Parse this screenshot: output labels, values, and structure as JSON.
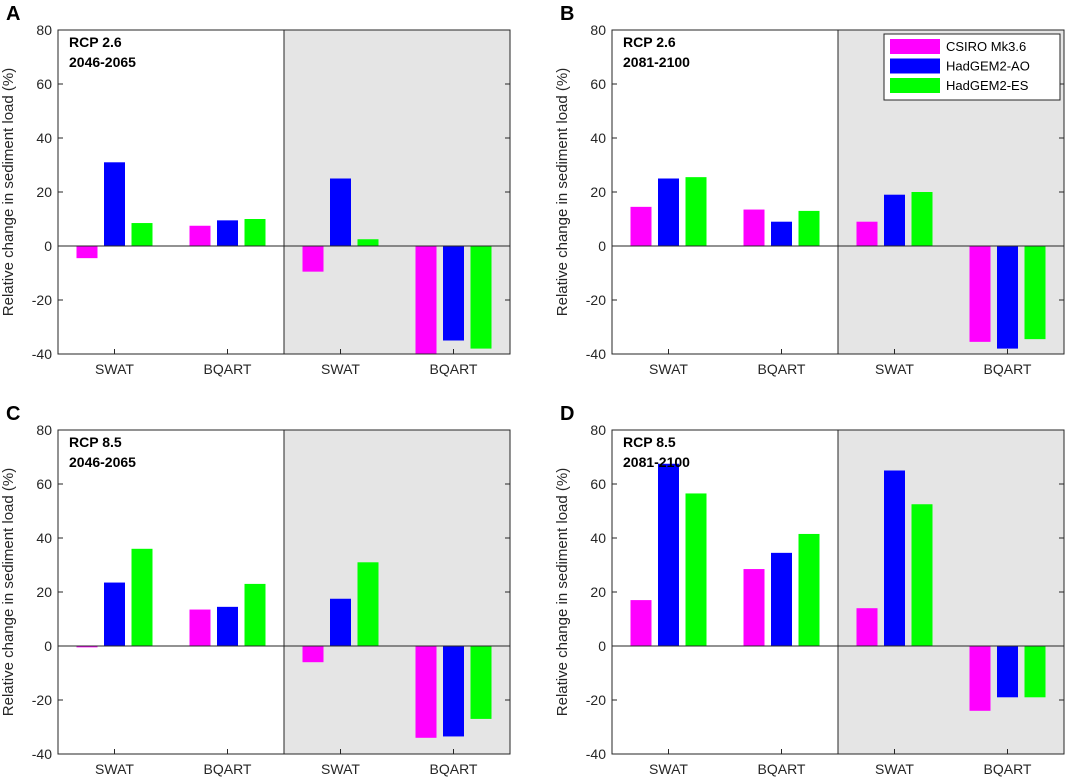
{
  "chart_data": [
    {
      "panel": "A",
      "type": "bar",
      "scenario": "RCP 2.6",
      "period": "2046-2065",
      "categories": [
        "SWAT",
        "BQART",
        "SWAT",
        "BQART"
      ],
      "series": [
        {
          "name": "CSIRO Mk3.6",
          "color": "#ff00ff",
          "values": [
            -4.5,
            7.5,
            -9.5,
            -40
          ]
        },
        {
          "name": "HadGEM2-AO",
          "color": "#0000ff",
          "values": [
            31,
            9.5,
            25,
            -35
          ]
        },
        {
          "name": "HadGEM2-ES",
          "color": "#00ff00",
          "values": [
            8.5,
            10,
            2.5,
            -38
          ]
        }
      ],
      "ylabel": "Relative change in sediment load (%)",
      "ylim": [
        -40,
        80
      ],
      "yticks": [
        "-40",
        "-20",
        "0",
        "20",
        "40",
        "60",
        "80"
      ],
      "shaded_categories": [
        2,
        3
      ],
      "legend": false
    },
    {
      "panel": "B",
      "type": "bar",
      "scenario": "RCP 2.6",
      "period": "2081-2100",
      "categories": [
        "SWAT",
        "BQART",
        "SWAT",
        "BQART"
      ],
      "series": [
        {
          "name": "CSIRO Mk3.6",
          "color": "#ff00ff",
          "values": [
            14.5,
            13.5,
            9,
            -35.5
          ]
        },
        {
          "name": "HadGEM2-AO",
          "color": "#0000ff",
          "values": [
            25,
            9,
            19,
            -38
          ]
        },
        {
          "name": "HadGEM2-ES",
          "color": "#00ff00",
          "values": [
            25.5,
            13,
            20,
            -34.5
          ]
        }
      ],
      "ylabel": "Relative change in sediment load (%)",
      "ylim": [
        -40,
        80
      ],
      "yticks": [
        "-40",
        "-20",
        "0",
        "20",
        "40",
        "60",
        "80"
      ],
      "shaded_categories": [
        2,
        3
      ],
      "legend": true,
      "legend_position": "top-right"
    },
    {
      "panel": "C",
      "type": "bar",
      "scenario": "RCP 8.5",
      "period": "2046-2065",
      "categories": [
        "SWAT",
        "BQART",
        "SWAT",
        "BQART"
      ],
      "series": [
        {
          "name": "CSIRO Mk3.6",
          "color": "#ff00ff",
          "values": [
            -0.5,
            13.5,
            -6,
            -34
          ]
        },
        {
          "name": "HadGEM2-AO",
          "color": "#0000ff",
          "values": [
            23.5,
            14.5,
            17.5,
            -33.5
          ]
        },
        {
          "name": "HadGEM2-ES",
          "color": "#00ff00",
          "values": [
            36,
            23,
            31,
            -27
          ]
        }
      ],
      "ylabel": "Relative change in sediment load (%)",
      "ylim": [
        -40,
        80
      ],
      "yticks": [
        "-40",
        "-20",
        "0",
        "20",
        "40",
        "60",
        "80"
      ],
      "shaded_categories": [
        2,
        3
      ],
      "legend": false
    },
    {
      "panel": "D",
      "type": "bar",
      "scenario": "RCP 8.5",
      "period": "2081-2100",
      "categories": [
        "SWAT",
        "BQART",
        "SWAT",
        "BQART"
      ],
      "series": [
        {
          "name": "CSIRO Mk3.6",
          "color": "#ff00ff",
          "values": [
            17,
            28.5,
            14,
            -24
          ]
        },
        {
          "name": "HadGEM2-AO",
          "color": "#0000ff",
          "values": [
            67.5,
            34.5,
            65,
            -19
          ]
        },
        {
          "name": "HadGEM2-ES",
          "color": "#00ff00",
          "values": [
            56.5,
            41.5,
            52.5,
            -19
          ]
        }
      ],
      "ylabel": "Relative change in sediment load (%)",
      "ylim": [
        -40,
        80
      ],
      "yticks": [
        "-40",
        "-20",
        "0",
        "20",
        "40",
        "60",
        "80"
      ],
      "shaded_categories": [
        2,
        3
      ],
      "legend": false
    }
  ],
  "colors": {
    "shade": "#e5e5e5",
    "axis": "#262626"
  }
}
